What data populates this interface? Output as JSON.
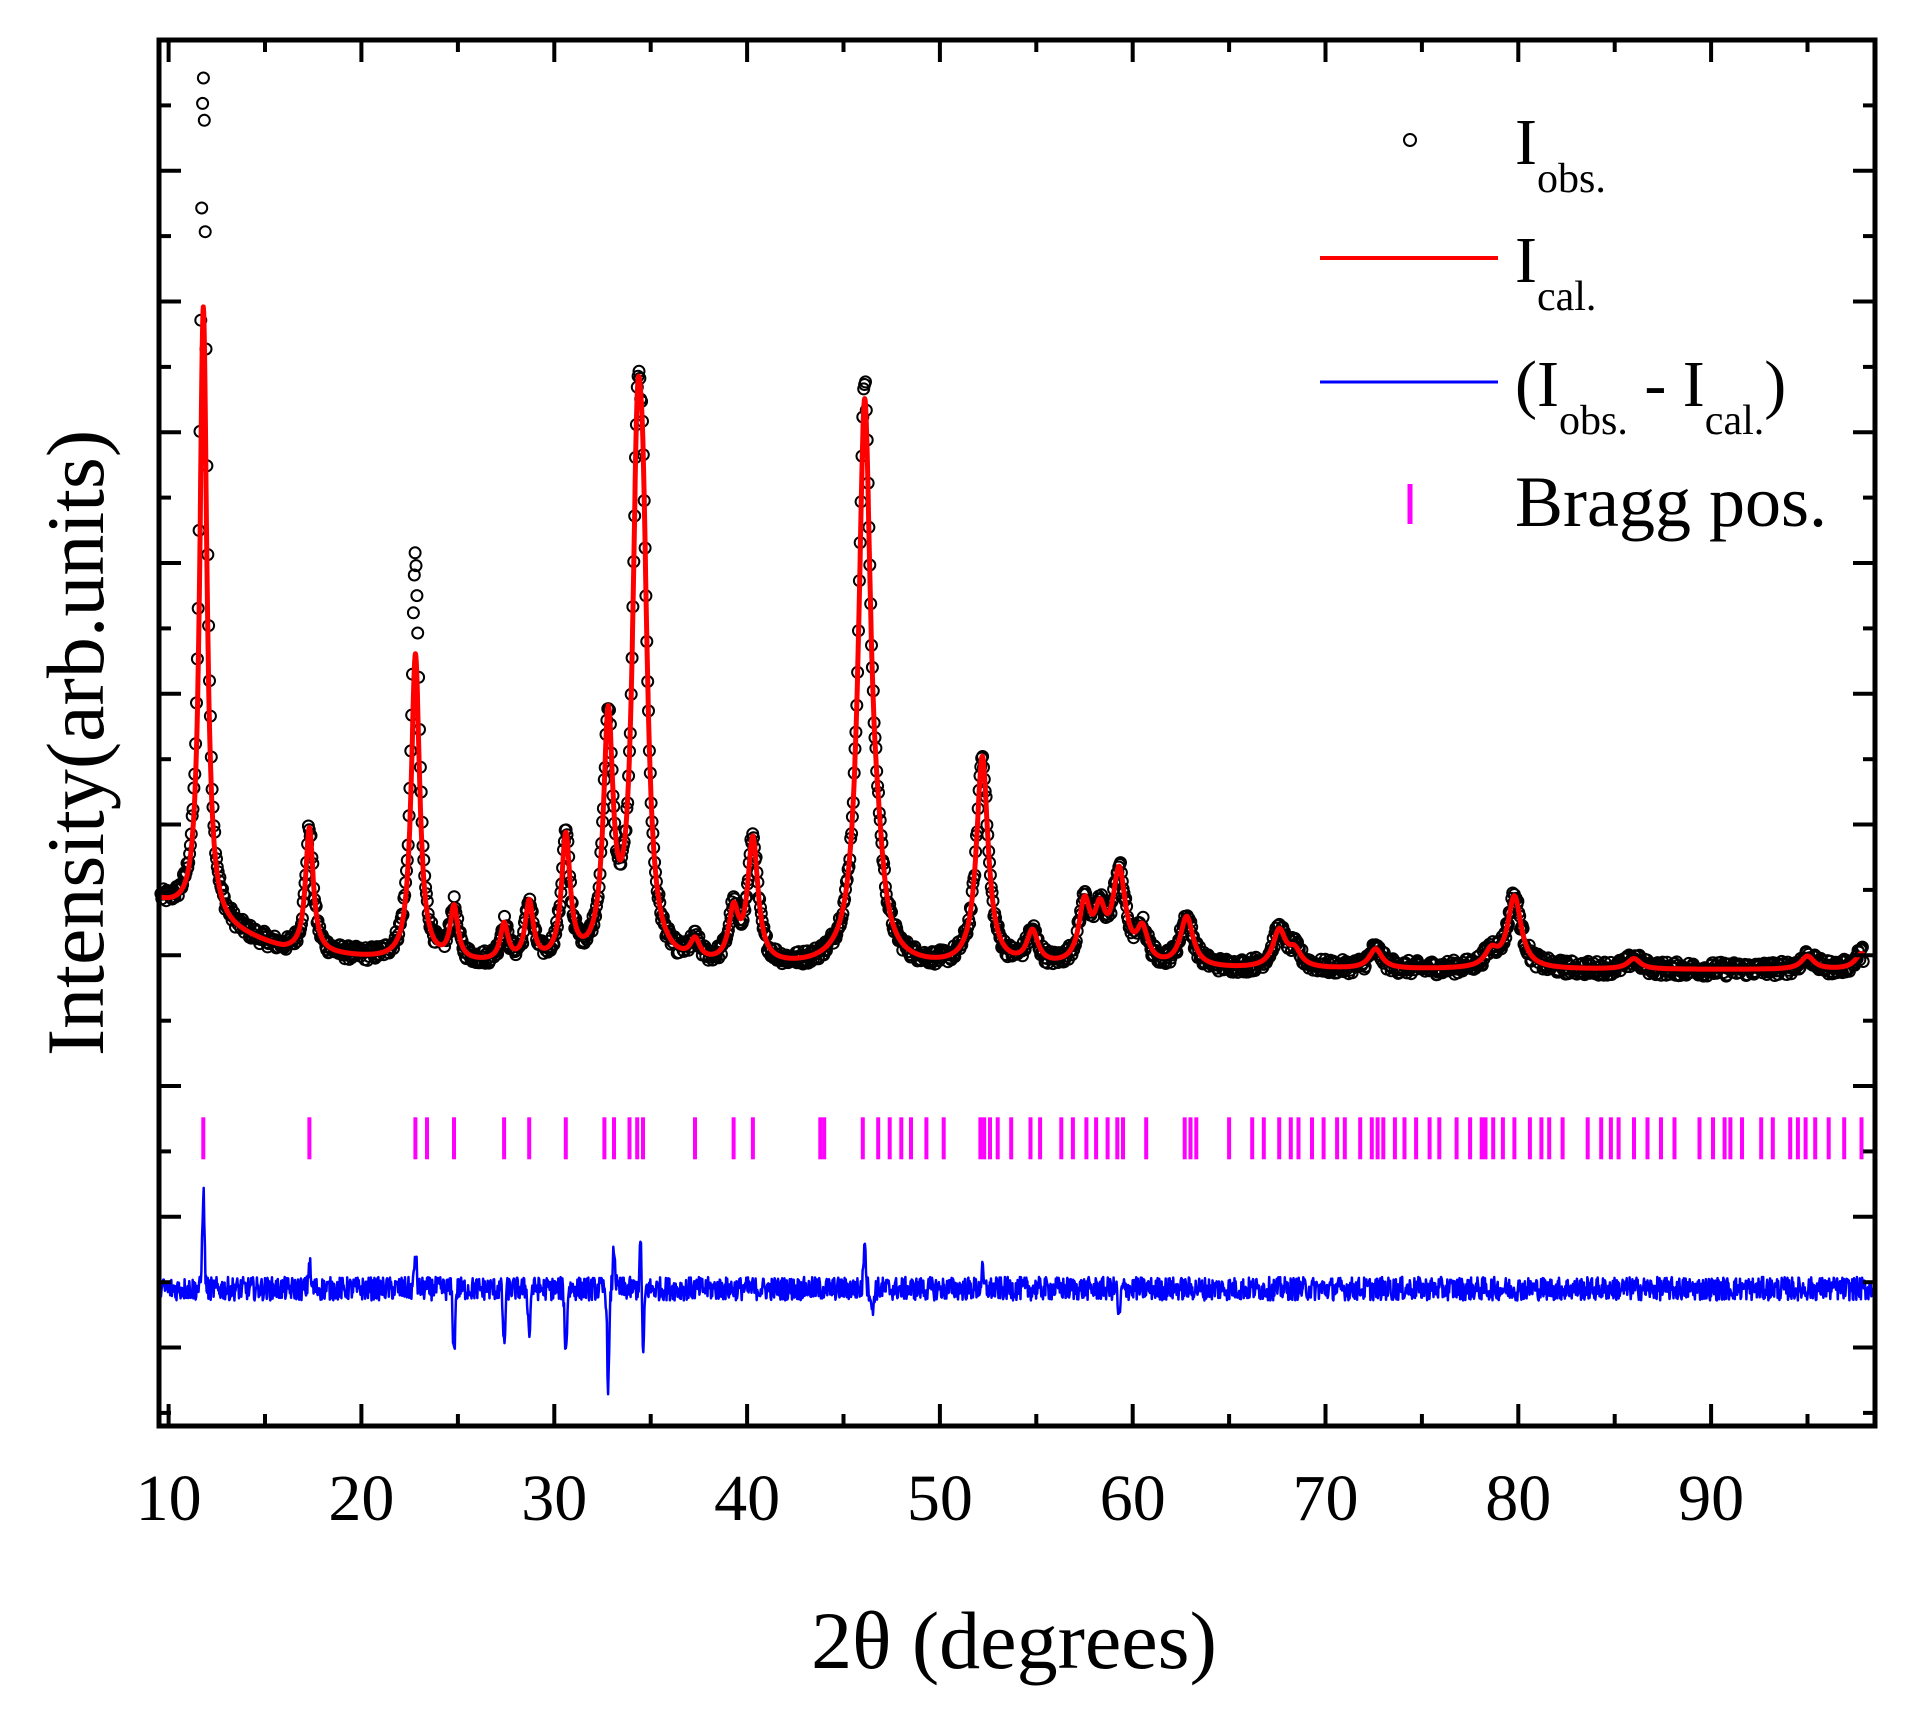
{
  "chart_data": {
    "type": "line",
    "title": "",
    "xlabel": "2θ (degrees)",
    "ylabel": "Intensity(arb.units)",
    "xlim": [
      9.5,
      98.5
    ],
    "ylim": [
      -3.6,
      7.0
    ],
    "xticks": [
      10,
      20,
      30,
      40,
      50,
      60,
      70,
      80,
      90
    ],
    "xtick_labels": [
      "10",
      "20",
      "30",
      "40",
      "50",
      "60",
      "70",
      "80",
      "90"
    ],
    "yticks": [
      -3,
      -2,
      -1,
      0,
      1,
      2,
      3,
      4,
      5,
      6
    ],
    "ytick_labels_visible": false,
    "grid": false,
    "legend_position": "top-right",
    "legend": {
      "obs": {
        "main": "I",
        "sub": "obs."
      },
      "cal": {
        "main": "I",
        "sub": "cal."
      },
      "diff": {
        "open": "(I",
        "sub1": "obs.",
        "mid": " - I",
        "sub2": "cal.",
        "close": ")"
      },
      "bragg": {
        "label": "Bragg pos."
      }
    },
    "colors": {
      "observed": "#000000",
      "calculated": "#ff0000",
      "difference": "#0000ff",
      "bragg": "#ff00ff"
    },
    "background": {
      "x": [
        9.5,
        12,
        16,
        22,
        35,
        50,
        70,
        98
      ],
      "y": [
        0.4,
        0.24,
        0.03,
        -0.06,
        -0.11,
        -0.11,
        -0.11,
        -0.11
      ]
    },
    "peaks": [
      {
        "x": 11.8,
        "h": 4.7,
        "w": 0.22
      },
      {
        "x": 17.3,
        "h": 0.95,
        "w": 0.24
      },
      {
        "x": 22.8,
        "h": 2.35,
        "w": 0.26
      },
      {
        "x": 24.8,
        "h": 0.4,
        "w": 0.24
      },
      {
        "x": 27.4,
        "h": 0.28,
        "w": 0.24
      },
      {
        "x": 28.7,
        "h": 0.45,
        "w": 0.25
      },
      {
        "x": 30.6,
        "h": 0.95,
        "w": 0.27
      },
      {
        "x": 32.8,
        "h": 1.8,
        "w": 0.3
      },
      {
        "x": 34.3,
        "h": 3.1,
        "w": 0.3
      },
      {
        "x": 34.6,
        "h": 2.4,
        "w": 0.3
      },
      {
        "x": 37.3,
        "h": 0.15,
        "w": 0.3
      },
      {
        "x": 39.3,
        "h": 0.38,
        "w": 0.3
      },
      {
        "x": 40.3,
        "h": 0.95,
        "w": 0.32
      },
      {
        "x": 46.1,
        "h": 4.28,
        "w": 0.38
      },
      {
        "x": 46.8,
        "h": 0.35,
        "w": 0.35
      },
      {
        "x": 52.2,
        "h": 1.6,
        "w": 0.36
      },
      {
        "x": 54.8,
        "h": 0.25,
        "w": 0.35
      },
      {
        "x": 57.5,
        "h": 0.45,
        "w": 0.35
      },
      {
        "x": 58.3,
        "h": 0.35,
        "w": 0.35
      },
      {
        "x": 59.3,
        "h": 0.7,
        "w": 0.4
      },
      {
        "x": 60.5,
        "h": 0.25,
        "w": 0.35
      },
      {
        "x": 62.8,
        "h": 0.38,
        "w": 0.4
      },
      {
        "x": 67.6,
        "h": 0.28,
        "w": 0.4
      },
      {
        "x": 68.4,
        "h": 0.12,
        "w": 0.4
      },
      {
        "x": 72.6,
        "h": 0.15,
        "w": 0.4
      },
      {
        "x": 78.6,
        "h": 0.12,
        "w": 0.4
      },
      {
        "x": 79.8,
        "h": 0.55,
        "w": 0.42
      },
      {
        "x": 86.0,
        "h": 0.08,
        "w": 0.4
      },
      {
        "x": 95.0,
        "h": 0.1,
        "w": 0.4
      },
      {
        "x": 97.8,
        "h": 0.12,
        "w": 0.4
      }
    ],
    "observed_extra_peaks": [
      {
        "x": 11.8,
        "h": 1.8,
        "w": 0.16
      },
      {
        "x": 22.8,
        "h": 0.75,
        "w": 0.2
      },
      {
        "x": 46.1,
        "h": 0.12,
        "w": 0.3
      }
    ],
    "noise_amplitude": 0.055,
    "difference_offset": -2.55,
    "difference_spikes": [
      {
        "x": 11.8,
        "v": 0.75
      },
      {
        "x": 17.3,
        "v": 0.2
      },
      {
        "x": 22.8,
        "v": 0.28
      },
      {
        "x": 24.8,
        "v": -0.5
      },
      {
        "x": 27.4,
        "v": -0.45
      },
      {
        "x": 28.7,
        "v": -0.35
      },
      {
        "x": 30.6,
        "v": -0.5
      },
      {
        "x": 32.8,
        "v": -0.75
      },
      {
        "x": 33.1,
        "v": 0.32
      },
      {
        "x": 34.5,
        "v": 0.45
      },
      {
        "x": 34.6,
        "v": -0.6
      },
      {
        "x": 46.1,
        "v": 0.4
      },
      {
        "x": 46.5,
        "v": -0.2
      },
      {
        "x": 52.2,
        "v": 0.12
      },
      {
        "x": 59.3,
        "v": -0.25
      }
    ],
    "bragg_row_y": -1.4,
    "bragg_positions": [
      11.8,
      17.3,
      22.8,
      23.4,
      24.8,
      27.4,
      28.7,
      30.6,
      32.6,
      33.1,
      33.9,
      34.3,
      34.6,
      37.3,
      39.3,
      40.3,
      43.8,
      44.0,
      46.0,
      46.8,
      47.4,
      48.0,
      48.5,
      49.3,
      50.2,
      52.1,
      52.3,
      52.6,
      53.0,
      53.7,
      54.7,
      55.2,
      56.3,
      56.9,
      57.6,
      58.1,
      58.7,
      59.2,
      59.5,
      60.7,
      62.7,
      63.0,
      63.3,
      65.0,
      66.2,
      66.8,
      67.6,
      68.2,
      68.6,
      69.3,
      69.9,
      70.6,
      71.0,
      71.8,
      72.4,
      72.7,
      73.0,
      73.6,
      74.1,
      74.7,
      75.4,
      75.9,
      76.8,
      77.5,
      78.1,
      78.3,
      78.7,
      79.2,
      79.8,
      80.6,
      81.2,
      81.6,
      82.3,
      83.6,
      84.3,
      84.8,
      85.2,
      86.0,
      86.7,
      87.4,
      88.1,
      89.4,
      90.1,
      90.7,
      91.0,
      91.6,
      92.6,
      93.2,
      94.1,
      94.5,
      94.9,
      95.4,
      96.1,
      96.9,
      97.8
    ]
  }
}
